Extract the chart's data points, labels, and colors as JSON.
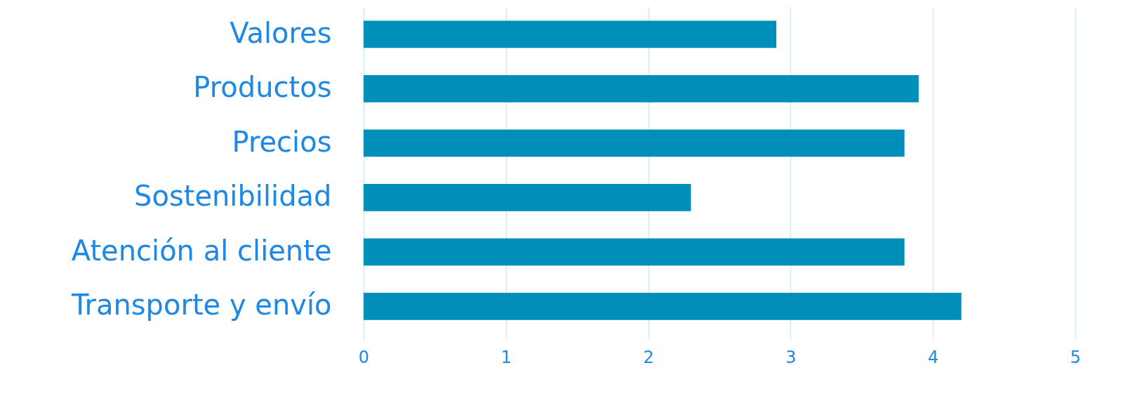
{
  "chart_data": {
    "type": "bar",
    "orientation": "horizontal",
    "categories": [
      "Valores",
      "Productos",
      "Precios",
      "Sostenibilidad",
      "Atención al cliente",
      "Transporte y envío"
    ],
    "values": [
      2.9,
      3.9,
      3.8,
      2.3,
      3.8,
      4.2
    ],
    "color": "#008fb8",
    "xlim": [
      0,
      5
    ],
    "xticks": [
      0,
      1,
      2,
      3,
      4,
      5
    ],
    "grid": "x"
  }
}
